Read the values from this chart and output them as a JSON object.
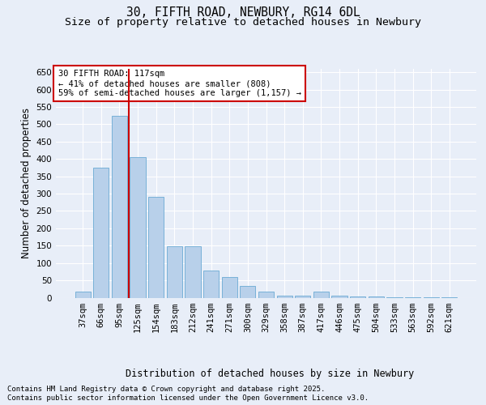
{
  "title": "30, FIFTH ROAD, NEWBURY, RG14 6DL",
  "subtitle": "Size of property relative to detached houses in Newbury",
  "xlabel": "Distribution of detached houses by size in Newbury",
  "ylabel": "Number of detached properties",
  "categories": [
    "37sqm",
    "66sqm",
    "95sqm",
    "125sqm",
    "154sqm",
    "183sqm",
    "212sqm",
    "241sqm",
    "271sqm",
    "300sqm",
    "329sqm",
    "358sqm",
    "387sqm",
    "417sqm",
    "446sqm",
    "475sqm",
    "504sqm",
    "533sqm",
    "563sqm",
    "592sqm",
    "621sqm"
  ],
  "values": [
    17,
    375,
    525,
    405,
    290,
    148,
    148,
    78,
    60,
    35,
    18,
    5,
    5,
    18,
    5,
    3,
    3,
    1,
    1,
    1,
    1
  ],
  "bar_color": "#b8d0ea",
  "bar_edge_color": "#6aaad4",
  "vline_color": "#cc0000",
  "annotation_text": "30 FIFTH ROAD: 117sqm\n← 41% of detached houses are smaller (808)\n59% of semi-detached houses are larger (1,157) →",
  "annotation_box_color": "#ffffff",
  "annotation_box_edge": "#cc0000",
  "ylim": [
    0,
    660
  ],
  "bg_color": "#e8eef8",
  "grid_color": "#ffffff",
  "footer_line1": "Contains HM Land Registry data © Crown copyright and database right 2025.",
  "footer_line2": "Contains public sector information licensed under the Open Government Licence v3.0.",
  "title_fontsize": 10.5,
  "subtitle_fontsize": 9.5,
  "axis_label_fontsize": 8.5,
  "tick_fontsize": 7.5,
  "annotation_fontsize": 7.5,
  "footer_fontsize": 6.5
}
